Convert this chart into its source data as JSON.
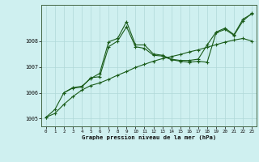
{
  "title": "Graphe pression niveau de la mer (hPa)",
  "bg_color": "#cff0f0",
  "grid_color": "#b0d8d8",
  "line_color": "#1a5c1a",
  "xlim": [
    -0.5,
    23.5
  ],
  "ylim": [
    1004.7,
    1009.4
  ],
  "yticks": [
    1005,
    1006,
    1007,
    1008
  ],
  "xticks": [
    0,
    1,
    2,
    3,
    4,
    5,
    6,
    7,
    8,
    9,
    10,
    11,
    12,
    13,
    14,
    15,
    16,
    17,
    18,
    19,
    20,
    21,
    22,
    23
  ],
  "series1": {
    "x": [
      0,
      1,
      2,
      3,
      4,
      5,
      6,
      7,
      8,
      9,
      10,
      11,
      12,
      13,
      14,
      15,
      16,
      17,
      18,
      19,
      20,
      21,
      22,
      23
    ],
    "y": [
      1005.05,
      1005.35,
      1006.0,
      1006.2,
      1006.25,
      1006.55,
      1006.75,
      1007.97,
      1008.1,
      1008.75,
      1007.85,
      1007.85,
      1007.5,
      1007.45,
      1007.3,
      1007.25,
      1007.25,
      1007.3,
      1007.85,
      1008.35,
      1008.5,
      1008.25,
      1008.85,
      1009.05
    ]
  },
  "series2": {
    "x": [
      0,
      1,
      2,
      3,
      4,
      5,
      6,
      7,
      8,
      9,
      10,
      11,
      12,
      13,
      14,
      15,
      16,
      17,
      18,
      19,
      20,
      21,
      22,
      23
    ],
    "y": [
      1005.05,
      1005.2,
      1005.55,
      1005.85,
      1006.1,
      1006.28,
      1006.38,
      1006.52,
      1006.68,
      1006.82,
      1006.98,
      1007.1,
      1007.22,
      1007.32,
      1007.4,
      1007.48,
      1007.58,
      1007.66,
      1007.76,
      1007.86,
      1007.96,
      1008.04,
      1008.1,
      1008.0
    ]
  },
  "series3": {
    "x": [
      2,
      3,
      4,
      5,
      6,
      7,
      8,
      9,
      10,
      11,
      12,
      13,
      14,
      15,
      16,
      17,
      18,
      19,
      20,
      21,
      22,
      23
    ],
    "y": [
      1006.0,
      1006.18,
      1006.22,
      1006.58,
      1006.62,
      1007.78,
      1008.0,
      1008.55,
      1007.78,
      1007.72,
      1007.45,
      1007.42,
      1007.28,
      1007.22,
      1007.18,
      1007.22,
      1007.18,
      1008.32,
      1008.45,
      1008.22,
      1008.78,
      1009.08
    ]
  }
}
